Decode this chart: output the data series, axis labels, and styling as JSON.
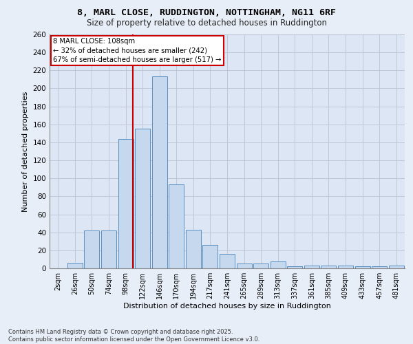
{
  "title_line1": "8, MARL CLOSE, RUDDINGTON, NOTTINGHAM, NG11 6RF",
  "title_line2": "Size of property relative to detached houses in Ruddington",
  "xlabel": "Distribution of detached houses by size in Ruddington",
  "ylabel": "Number of detached properties",
  "footer_line1": "Contains HM Land Registry data © Crown copyright and database right 2025.",
  "footer_line2": "Contains public sector information licensed under the Open Government Licence v3.0.",
  "categories": [
    "2sqm",
    "26sqm",
    "50sqm",
    "74sqm",
    "98sqm",
    "122sqm",
    "146sqm",
    "170sqm",
    "194sqm",
    "217sqm",
    "241sqm",
    "265sqm",
    "289sqm",
    "313sqm",
    "337sqm",
    "361sqm",
    "385sqm",
    "409sqm",
    "433sqm",
    "457sqm",
    "481sqm"
  ],
  "bar_heights": [
    0,
    6,
    42,
    42,
    144,
    155,
    213,
    93,
    43,
    26,
    16,
    5,
    5,
    8,
    2,
    3,
    3,
    3,
    2,
    2,
    3
  ],
  "annotation_text": "8 MARL CLOSE: 108sqm\n← 32% of detached houses are smaller (242)\n67% of semi-detached houses are larger (517) →",
  "bar_color": "#c5d8ee",
  "bar_edge_color": "#5a8fc0",
  "annotation_box_color": "#ffffff",
  "annotation_box_edge": "#cc0000",
  "vline_color": "#cc0000",
  "grid_color": "#c0c8d8",
  "background_color": "#dce6f5",
  "fig_background": "#e8eef8",
  "ylim": [
    0,
    260
  ],
  "yticks": [
    0,
    20,
    40,
    60,
    80,
    100,
    120,
    140,
    160,
    180,
    200,
    220,
    240,
    260
  ]
}
